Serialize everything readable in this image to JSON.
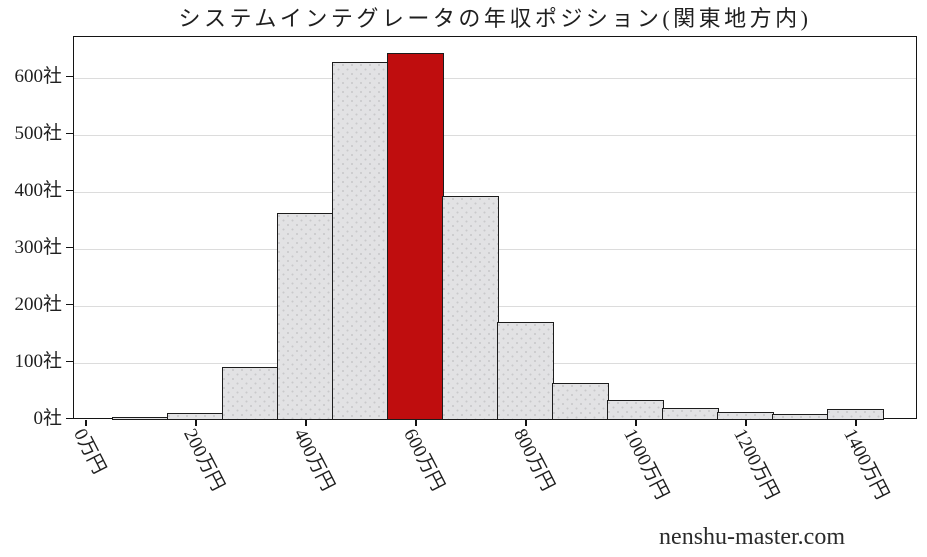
{
  "title": "システムインテグレータの年収ポジション(関東地方内)",
  "watermark": "nenshu-master.com",
  "colors": {
    "bar_fill": "#e2e2e4",
    "bar_hatch_dot": "#c9c9cb",
    "bar_edge": "#1c1c1c",
    "highlight_bar": "#bf0d0e",
    "gridline": "#dcdcdc",
    "axis_spine": "#141414",
    "text": "#1f1f1f"
  },
  "chart_data": {
    "type": "bar",
    "title": "システムインテグレータの年収ポジション(関東地方内)",
    "categories_manen": [
      100,
      200,
      300,
      400,
      500,
      600,
      700,
      800,
      900,
      1000,
      1100,
      1200,
      1300,
      1400
    ],
    "values": [
      2,
      9,
      90,
      360,
      625,
      640,
      390,
      168,
      62,
      32,
      17,
      10,
      7,
      16
    ],
    "highlight_index": 5,
    "bin_width_manen": 100,
    "x_tick_labels": [
      "0万円",
      "200万円",
      "400万円",
      "600万円",
      "800万円",
      "1000万円",
      "1200万円",
      "1400万円"
    ],
    "x_tick_values_manen": [
      0,
      200,
      400,
      600,
      800,
      1000,
      1200,
      1400
    ],
    "y_tick_labels": [
      "0社",
      "100社",
      "200社",
      "300社",
      "400社",
      "500社",
      "600社"
    ],
    "y_tick_values": [
      0,
      100,
      200,
      300,
      400,
      500,
      600
    ],
    "ylabel_unit": "社",
    "xlabel_unit": "万円",
    "xlim_manen": [
      -25,
      1510
    ],
    "ylim": [
      0,
      672
    ],
    "grid": "horizontal"
  }
}
